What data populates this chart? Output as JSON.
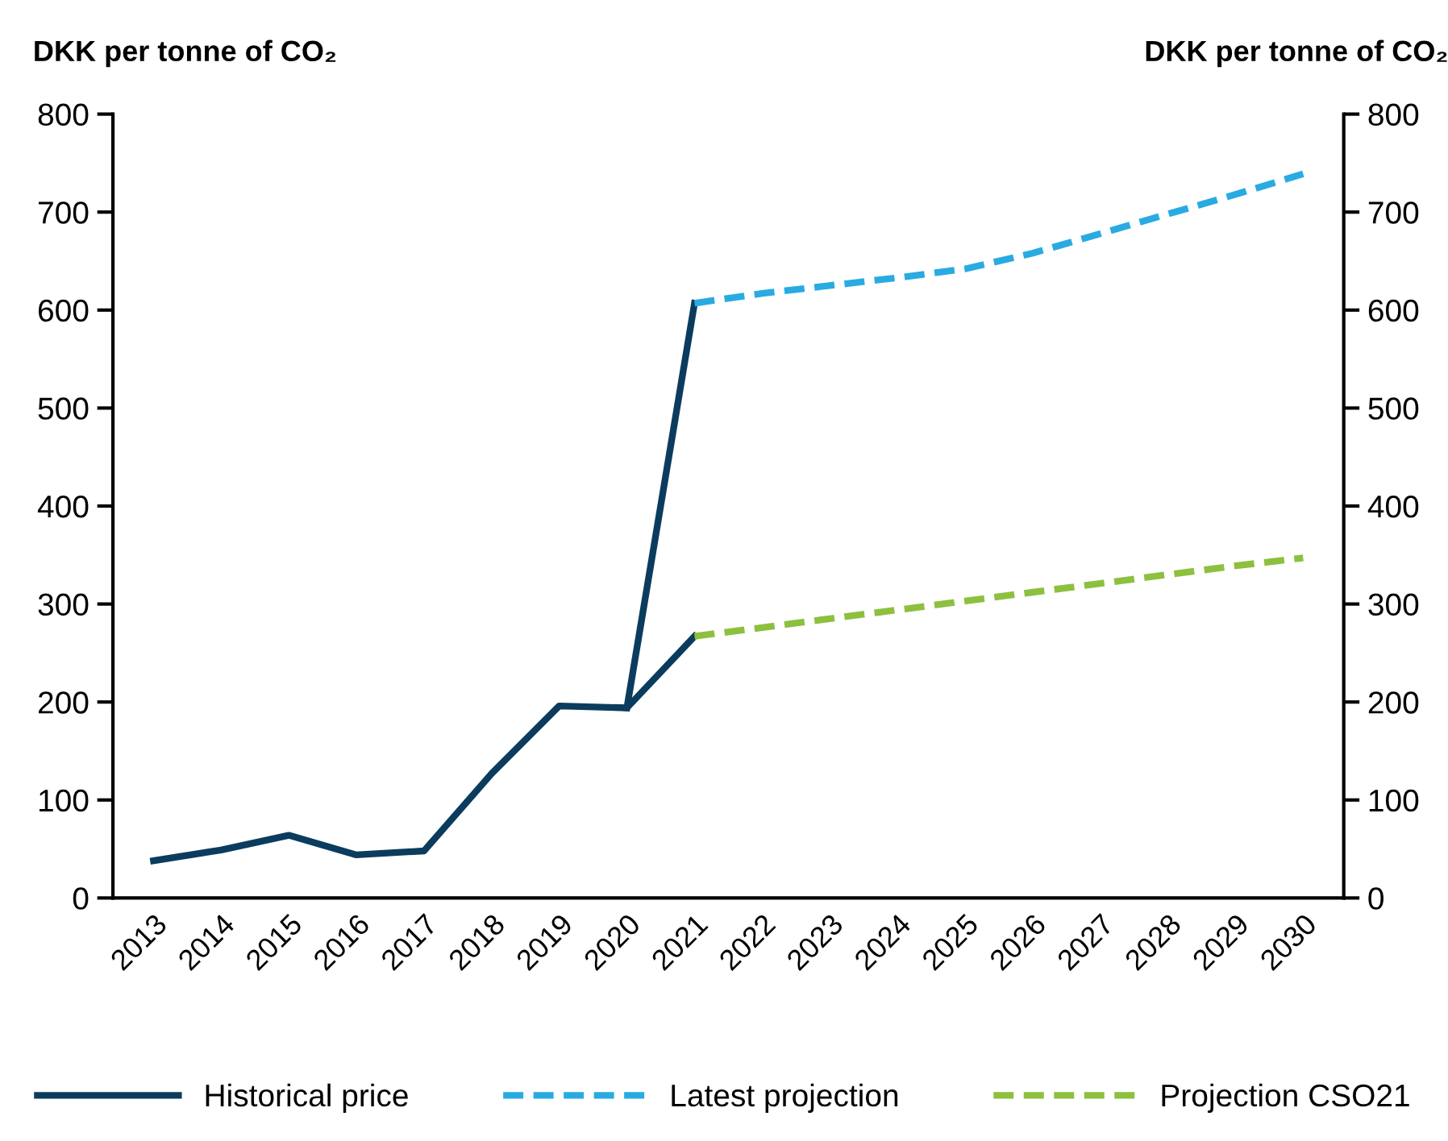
{
  "chart_data": {
    "type": "line",
    "categories": [
      "2013",
      "2014",
      "2015",
      "2016",
      "2017",
      "2018",
      "2019",
      "2020",
      "2021",
      "2022",
      "2023",
      "2024",
      "2025",
      "2026",
      "2027",
      "2028",
      "2029",
      "2030"
    ],
    "ylabel": "DKK per tonne of CO₂",
    "y2label": "DKK per tonne of CO₂",
    "ylim": [
      0,
      800
    ],
    "yticks": [
      0,
      100,
      200,
      300,
      400,
      500,
      600,
      700,
      800
    ],
    "y2lim": [
      0,
      800
    ],
    "y2ticks": [
      0,
      100,
      200,
      300,
      400,
      500,
      600,
      700,
      800
    ],
    "legend": "bottom",
    "grid": false,
    "series": [
      {
        "name": "Historical price",
        "color": "#0b3c5d",
        "line_style": "solid",
        "values": [
          38,
          49,
          64,
          44,
          48,
          127,
          196,
          194,
          267,
          null,
          null,
          null,
          null,
          null,
          null,
          null,
          null,
          null
        ]
      },
      {
        "color": "#0b3c5d",
        "line_style": "solid",
        "values": [
          null,
          null,
          null,
          null,
          null,
          null,
          null,
          194,
          607,
          null,
          null,
          null,
          null,
          null,
          null,
          null,
          null,
          null
        ]
      },
      {
        "name": "Latest projection",
        "color": "#29abe2",
        "line_style": "dashed",
        "values": [
          null,
          null,
          null,
          null,
          null,
          null,
          null,
          null,
          607,
          617,
          625,
          633,
          642,
          658,
          678,
          698,
          718,
          739
        ]
      },
      {
        "name": "Projection CSO21",
        "color": "#8dc03f",
        "line_style": "dashed",
        "values": [
          null,
          null,
          null,
          null,
          null,
          null,
          null,
          null,
          267,
          276,
          285,
          294,
          303,
          312,
          321,
          330,
          339,
          347
        ]
      }
    ]
  }
}
